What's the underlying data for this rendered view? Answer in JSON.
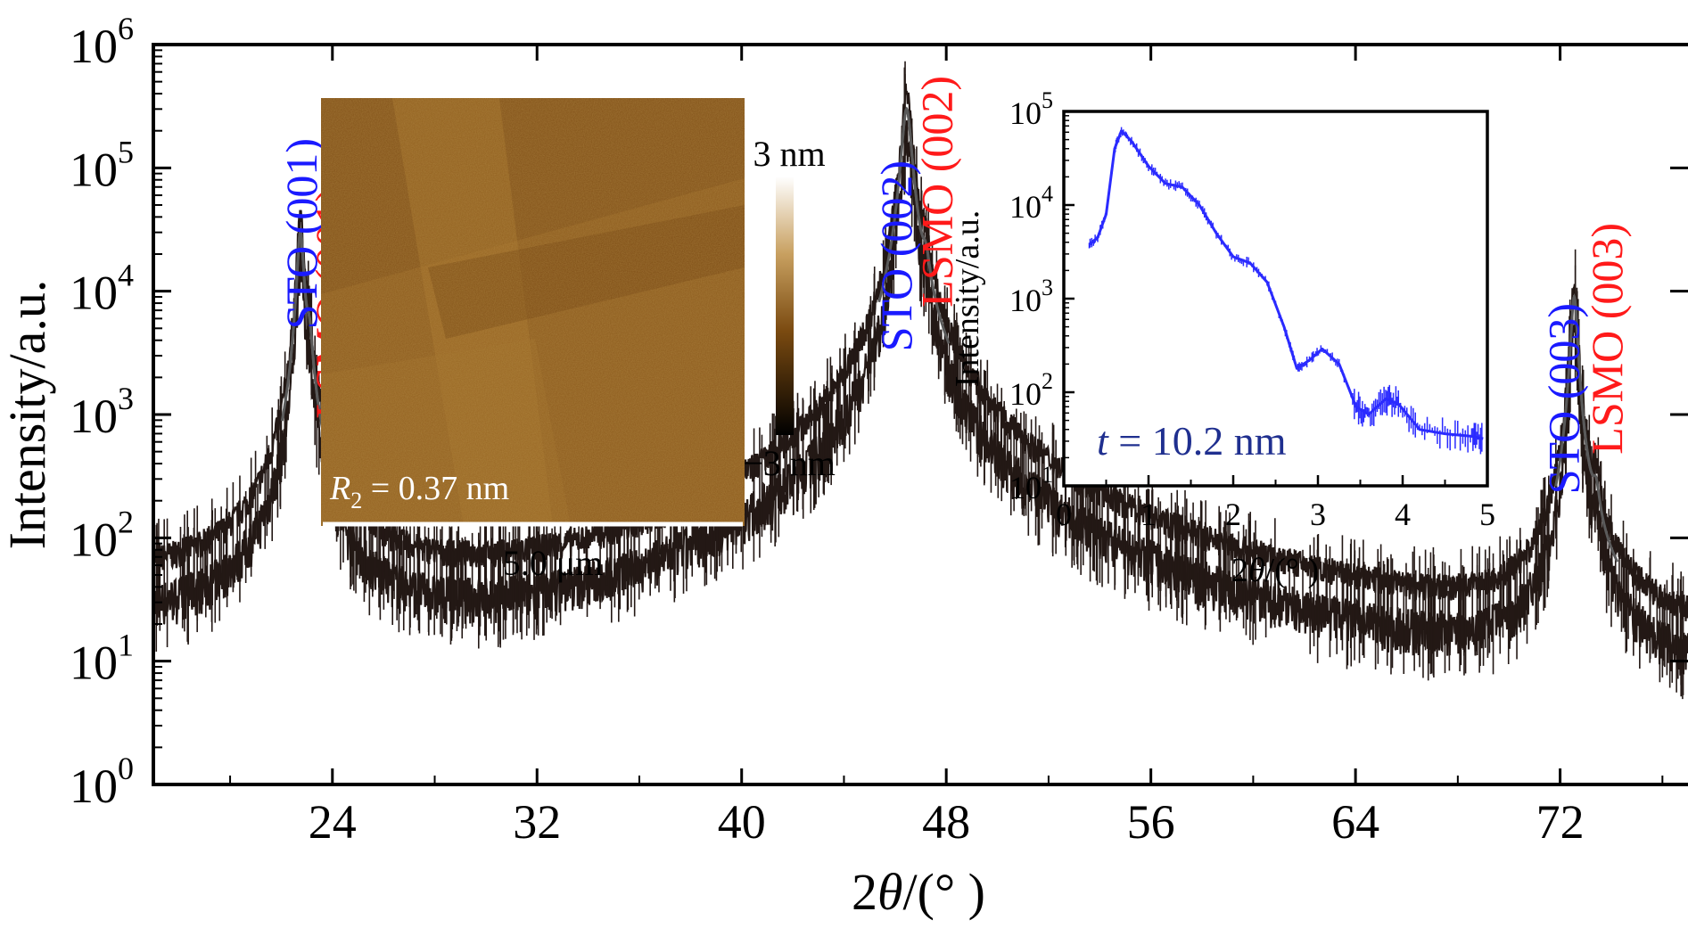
{
  "chart_data": [
    {
      "type": "line",
      "role": "main",
      "xlabel": "2θ/(°  )",
      "ylabel": "Intensity/a.u.",
      "xlim": [
        17,
        77
      ],
      "ylim_log10": [
        0,
        6
      ],
      "yscale": "log",
      "x_ticks": [
        "24",
        "32",
        "40",
        "48",
        "56",
        "64",
        "72"
      ],
      "y_ticks": [
        {
          "base": "10",
          "exp": "0"
        },
        {
          "base": "10",
          "exp": "1"
        },
        {
          "base": "10",
          "exp": "2"
        },
        {
          "base": "10",
          "exp": "3"
        },
        {
          "base": "10",
          "exp": "4"
        },
        {
          "base": "10",
          "exp": "5"
        },
        {
          "base": "10",
          "exp": "6"
        }
      ],
      "series_color": "#231815",
      "background": [
        {
          "x": 17.0,
          "y": 25
        },
        {
          "x": 20.0,
          "y": 23
        },
        {
          "x": 22.0,
          "y": 24
        },
        {
          "x": 26.0,
          "y": 15
        },
        {
          "x": 30.0,
          "y": 11
        },
        {
          "x": 34.0,
          "y": 8
        },
        {
          "x": 38.0,
          "y": 6.5
        },
        {
          "x": 42.0,
          "y": 6
        },
        {
          "x": 44.0,
          "y": 8
        },
        {
          "x": 49.0,
          "y": 6
        },
        {
          "x": 52.0,
          "y": 3.5
        },
        {
          "x": 56.0,
          "y": 3
        },
        {
          "x": 60.0,
          "y": 2.8
        },
        {
          "x": 64.0,
          "y": 2.6
        },
        {
          "x": 68.0,
          "y": 2.5
        },
        {
          "x": 71.0,
          "y": 2.6
        },
        {
          "x": 75.0,
          "y": 2.5
        },
        {
          "x": 77.0,
          "y": 2.4
        }
      ],
      "peaks": [
        {
          "x": 22.75,
          "y": 30000,
          "width": 0.12
        },
        {
          "x": 23.1,
          "y": 3000,
          "width": 0.12
        },
        {
          "x": 46.45,
          "y": 300000,
          "width": 0.18
        },
        {
          "x": 47.2,
          "y": 8500,
          "width": 0.15
        },
        {
          "x": 72.55,
          "y": 9000,
          "width": 0.12
        },
        {
          "x": 73.4,
          "y": 120,
          "width": 0.14
        }
      ],
      "peak_labels": [
        {
          "text": "STO (001)",
          "color": "blue",
          "x": 22.75
        },
        {
          "text": "LSMO (001)",
          "color": "red",
          "x": 23.9
        },
        {
          "text": "STO (002)",
          "color": "blue",
          "x": 46.0
        },
        {
          "text": "LSMO (002)",
          "color": "red",
          "x": 47.6
        },
        {
          "text": "STO (003)",
          "color": "blue",
          "x": 72.1
        },
        {
          "text": "LSMO (003)",
          "color": "red",
          "x": 73.8
        }
      ]
    },
    {
      "type": "line",
      "role": "inset",
      "xlabel": "2θ/(°  )",
      "ylabel": "Intensity/a.u.",
      "xlim": [
        0,
        5
      ],
      "ylim_log10": [
        1,
        5
      ],
      "yscale": "log",
      "x_ticks": [
        "0",
        "1",
        "2",
        "3",
        "4",
        "5"
      ],
      "y_ticks": [
        {
          "base": "10",
          "exp": "1"
        },
        {
          "base": "10",
          "exp": "2"
        },
        {
          "base": "10",
          "exp": "3"
        },
        {
          "base": "10",
          "exp": "4"
        },
        {
          "base": "10",
          "exp": "5"
        }
      ],
      "series_color": "#2b2bff",
      "annotation": {
        "var": "t",
        "text": " = 10.2 nm",
        "color": "#1f2f8f"
      },
      "points": [
        {
          "x": 0.3,
          "y": 3800
        },
        {
          "x": 0.4,
          "y": 4500
        },
        {
          "x": 0.5,
          "y": 8000
        },
        {
          "x": 0.6,
          "y": 40000
        },
        {
          "x": 0.68,
          "y": 62000
        },
        {
          "x": 0.8,
          "y": 48000
        },
        {
          "x": 1.0,
          "y": 26000
        },
        {
          "x": 1.2,
          "y": 17000
        },
        {
          "x": 1.4,
          "y": 15500
        },
        {
          "x": 1.6,
          "y": 10000
        },
        {
          "x": 1.8,
          "y": 5000
        },
        {
          "x": 2.0,
          "y": 2800
        },
        {
          "x": 2.2,
          "y": 2400
        },
        {
          "x": 2.4,
          "y": 1500
        },
        {
          "x": 2.6,
          "y": 500
        },
        {
          "x": 2.75,
          "y": 180
        },
        {
          "x": 2.9,
          "y": 220
        },
        {
          "x": 3.05,
          "y": 290
        },
        {
          "x": 3.25,
          "y": 200
        },
        {
          "x": 3.45,
          "y": 70
        },
        {
          "x": 3.6,
          "y": 58
        },
        {
          "x": 3.8,
          "y": 85
        },
        {
          "x": 3.95,
          "y": 75
        },
        {
          "x": 4.2,
          "y": 40
        },
        {
          "x": 4.5,
          "y": 36
        },
        {
          "x": 4.8,
          "y": 34
        },
        {
          "x": 4.95,
          "y": 32
        }
      ]
    }
  ],
  "afm_inset": {
    "rq_symbol": "R",
    "rq_subscript": "2",
    "rq_text": " = 0.37 nm",
    "scale_bar_label": "5.0 μm",
    "colorbar_max": "3 nm",
    "colorbar_min": "−3 nm",
    "colors": {
      "dark": "#5a3008",
      "mid": "#8c5a1c",
      "light": "#b98a3a",
      "bar_top": "#ffffff",
      "bar_mid": "#8a5a20",
      "bar_bottom": "#000000"
    }
  }
}
